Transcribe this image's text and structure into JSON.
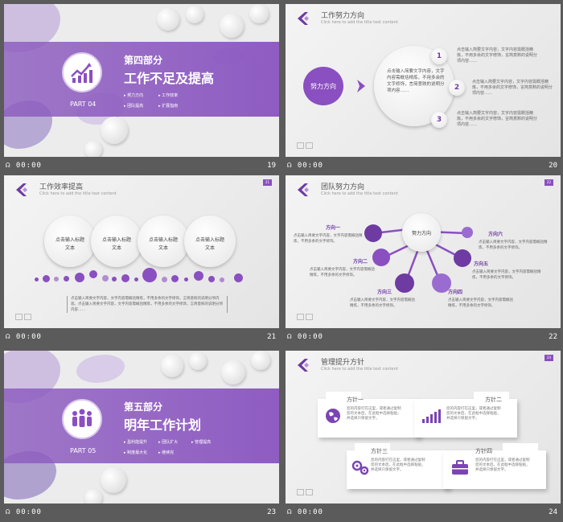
{
  "footer_time": "00:00",
  "slides": [
    {
      "number": "19",
      "part": "PART 04",
      "heading": "第四部分",
      "title": "工作不足及提高",
      "items": [
        "努力方向",
        "工作效率",
        "团队提高",
        "扩展指南"
      ]
    },
    {
      "number": "20",
      "title": "工作努力方向",
      "subtitle": "Click here to add the title text content",
      "center": "努力方向",
      "center_text": "点击输入简要文字内容，文字内容需概括精炼，不用多余的文字修饰，言简意赅的说明分项内容……",
      "steps": [
        "1",
        "2",
        "3"
      ],
      "step_text": "点击输入简要文字内容，文字内容需概括精炼，不用多余的文字修饰，言简意赅的说明分项内容……"
    },
    {
      "number": "21",
      "badge": "21",
      "title": "工作效率提高",
      "subtitle": "Click here to add the title text content",
      "circles": [
        "点击输入标题文本",
        "点击输入标题文本",
        "点击输入标题文本",
        "点击输入标题文本"
      ],
      "bottom_text": "点击输入简要文字内容，文字内容需概括精炼，不用多余的文字修饰，言简意赅的说明分项内容。点击输入简要文字内容，文字内容需概括精炼，不用多余的文字修饰，言简意赅的说明分项内容……"
    },
    {
      "number": "22",
      "badge": "22",
      "title": "团队努力方向",
      "subtitle": "Click here to add the title text content",
      "center": "努力方向",
      "directions": [
        "方向一",
        "方向二",
        "方向三",
        "方向四",
        "方向五",
        "方向六"
      ],
      "dir_text": "点击输入简要文字内容，文字内容需概括精炼，不用多余的文字修饰。"
    },
    {
      "number": "23",
      "part": "PART 05",
      "heading": "第五部分",
      "title": "明年工作计划",
      "items": [
        "盈利能提升",
        "团队扩大",
        "管理提高",
        "制度最大化",
        "继续完"
      ]
    },
    {
      "number": "24",
      "badge": "24",
      "title": "管理提升方针",
      "subtitle": "Click here to add the title text content",
      "cards": [
        {
          "title": "方针一",
          "icon": "globe-icon"
        },
        {
          "title": "方针二",
          "icon": "bar-chart-icon"
        },
        {
          "title": "方针三",
          "icon": "gears-icon"
        },
        {
          "title": "方针四",
          "icon": "briefcase-icon"
        }
      ],
      "card_text": "您的内容打在这里，或者通过复制您的文本后，在此框中选择粘贴，并选择只保留文字。"
    }
  ],
  "colors": {
    "accent": "#8a4fc0",
    "dark_accent": "#6d3ba1",
    "background": "#5b5b5b"
  }
}
